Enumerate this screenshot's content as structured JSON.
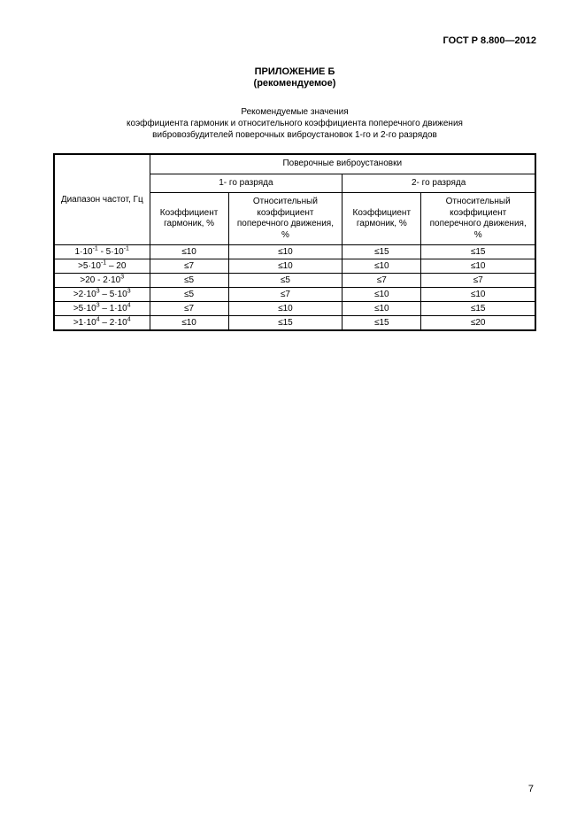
{
  "doc_header": "ГОСТ Р 8.800—2012",
  "appendix": {
    "title": "ПРИЛОЖЕНИЕ Б",
    "sub": "(рекомендуемое)"
  },
  "rec": {
    "line1": "Рекомендуемые значения",
    "line2": "коэффициента гармоник и относительного коэффициента поперечного движения",
    "line3": "вибровозбудителей поверочных виброустановок 1-го и 2-го разрядов"
  },
  "table": {
    "row_label": "Диапазон частот, Гц",
    "top_header": "Поверочные виброустановки",
    "rank1": "1- го разряда",
    "rank2": "2- го разряда",
    "col_harm": "Коэффициент гармоник, %",
    "col_rel": "Относительный коэффициент поперечного движения, %",
    "rows": [
      {
        "range_html": "1·10<span class='sup'>-1</span> - 5·10<span class='sup'>-1</span>",
        "v1": "≤10",
        "v2": "≤10",
        "v3": "≤15",
        "v4": "≤15"
      },
      {
        "range_html": ">5·10<span class='sup'>-1</span> – 20",
        "v1": "≤7",
        "v2": "≤10",
        "v3": "≤10",
        "v4": "≤10"
      },
      {
        "range_html": ">20 - 2·10<span class='sup'>3</span>",
        "v1": "≤5",
        "v2": "≤5",
        "v3": "≤7",
        "v4": "≤7"
      },
      {
        "range_html": ">2·10<span class='sup'>3</span> – 5·10<span class='sup'>3</span>",
        "v1": "≤5",
        "v2": "≤7",
        "v3": "≤10",
        "v4": "≤10"
      },
      {
        "range_html": ">5·10<span class='sup'>3</span> – 1·10<span class='sup'>4</span>",
        "v1": "≤7",
        "v2": "≤10",
        "v3": "≤10",
        "v4": "≤15"
      },
      {
        "range_html": ">1·10<span class='sup'>4</span> – 2·10<span class='sup'>4</span>",
        "v1": "≤10",
        "v2": "≤15",
        "v3": "≤15",
        "v4": "≤20"
      }
    ]
  },
  "page_number": "7"
}
